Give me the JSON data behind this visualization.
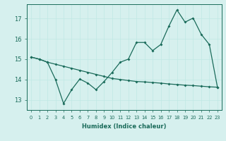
{
  "x": [
    0,
    1,
    2,
    3,
    4,
    5,
    6,
    7,
    8,
    9,
    10,
    11,
    12,
    13,
    14,
    15,
    16,
    17,
    18,
    19,
    20,
    21,
    22,
    23
  ],
  "line1": [
    15.1,
    15.0,
    14.85,
    14.0,
    12.82,
    13.5,
    14.02,
    13.82,
    13.5,
    13.9,
    14.35,
    14.85,
    15.0,
    15.82,
    15.82,
    15.42,
    15.72,
    16.62,
    17.42,
    16.82,
    17.02,
    16.22,
    15.72,
    13.62
  ],
  "line2": [
    15.1,
    15.0,
    14.85,
    14.75,
    14.65,
    14.55,
    14.45,
    14.35,
    14.25,
    14.15,
    14.05,
    14.0,
    13.95,
    13.9,
    13.88,
    13.85,
    13.82,
    13.78,
    13.75,
    13.72,
    13.7,
    13.67,
    13.64,
    13.62
  ],
  "line_color": "#1a6b5a",
  "bg_color": "#d6f0ee",
  "grid_color": "#c0e8e4",
  "xlabel": "Humidex (Indice chaleur)",
  "ylim": [
    12.5,
    17.7
  ],
  "xlim": [
    -0.5,
    23.5
  ],
  "yticks": [
    13,
    14,
    15,
    16,
    17
  ],
  "xtick_labels": [
    "0",
    "1",
    "2",
    "3",
    "4",
    "5",
    "6",
    "7",
    "8",
    "9",
    "10",
    "11",
    "12",
    "13",
    "14",
    "15",
    "16",
    "17",
    "18",
    "19",
    "20",
    "21",
    "22",
    "23"
  ]
}
